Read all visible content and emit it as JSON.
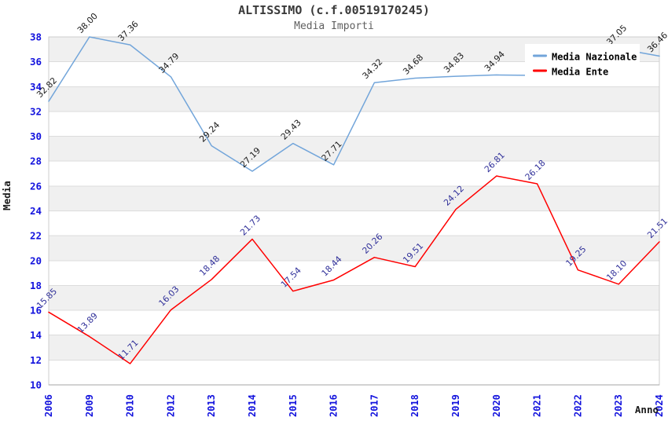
{
  "chart_data": {
    "type": "line",
    "title": "ALTISSIMO (c.f.00519170245)",
    "subtitle": "Media Importi",
    "xlabel": "Anno",
    "ylabel": "Media",
    "categories": [
      "2006",
      "2009",
      "2010",
      "2012",
      "2013",
      "2014",
      "2015",
      "2016",
      "2017",
      "2018",
      "2019",
      "2020",
      "2021",
      "2022",
      "2023",
      "2024"
    ],
    "ylim": [
      10,
      38
    ],
    "y_tick_step": 2,
    "grid": "horizontal gridlines every 2 units with alternating light-gray bands",
    "legend_position": "top-right overlay (covers the 2021-2022 segment of the blue line)",
    "tick_label_color": "#1212dd",
    "series": [
      {
        "name": "Media Nazionale",
        "color": "#72a5da",
        "label_color": "#1a1a1a",
        "values": [
          32.82,
          38.0,
          37.36,
          34.79,
          29.24,
          27.19,
          29.43,
          27.71,
          34.32,
          34.68,
          34.83,
          34.94,
          34.9,
          36.0,
          37.05,
          36.46
        ],
        "labels": [
          "32.82",
          "38.00",
          "37.36",
          "34.79",
          "29.24",
          "27.19",
          "29.43",
          "27.71",
          "34.32",
          "34.68",
          "34.83",
          "34.94",
          "",
          "",
          "37.05",
          "36.46"
        ]
      },
      {
        "name": "Media Ente",
        "color": "#ff0000",
        "label_color": "#2f2f99",
        "values": [
          15.85,
          13.89,
          11.71,
          16.03,
          18.48,
          21.73,
          17.54,
          18.44,
          20.26,
          19.51,
          24.12,
          26.81,
          26.18,
          19.25,
          18.1,
          21.51
        ],
        "labels": [
          "15.85",
          "13.89",
          "11.71",
          "16.03",
          "18.48",
          "21.73",
          "17.54",
          "18.44",
          "20.26",
          "19.51",
          "24.12",
          "26.81",
          "26.18",
          "19.25",
          "18.10",
          "21.51"
        ]
      }
    ]
  }
}
